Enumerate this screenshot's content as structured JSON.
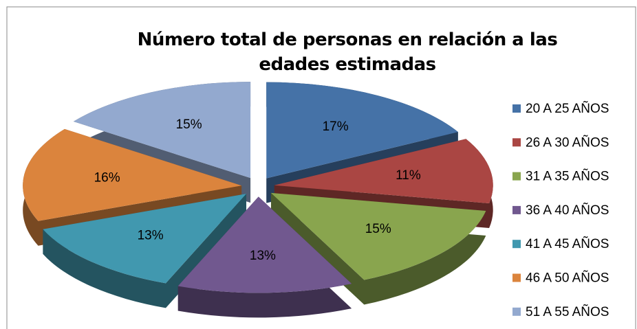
{
  "chart_data": {
    "type": "pie",
    "title": "Número total de personas en relación a las edades estimadas",
    "categories": [
      "20 A 25 AÑOS",
      "26 A 30 AÑOS",
      "31 A 35 AÑOS",
      "36 A 40 AÑOS",
      "41 A 45 AÑOS",
      "46 A 50 AÑOS",
      "51 A 55 AÑOS"
    ],
    "values": [
      17,
      11,
      15,
      13,
      13,
      16,
      15
    ],
    "value_labels": [
      "17%",
      "11%",
      "15%",
      "13%",
      "13%",
      "16%",
      "15%"
    ],
    "colors": [
      "#4572a7",
      "#aa4643",
      "#89a54e",
      "#71588f",
      "#4198af",
      "#db843d",
      "#93a9cf"
    ],
    "legend": "right"
  }
}
